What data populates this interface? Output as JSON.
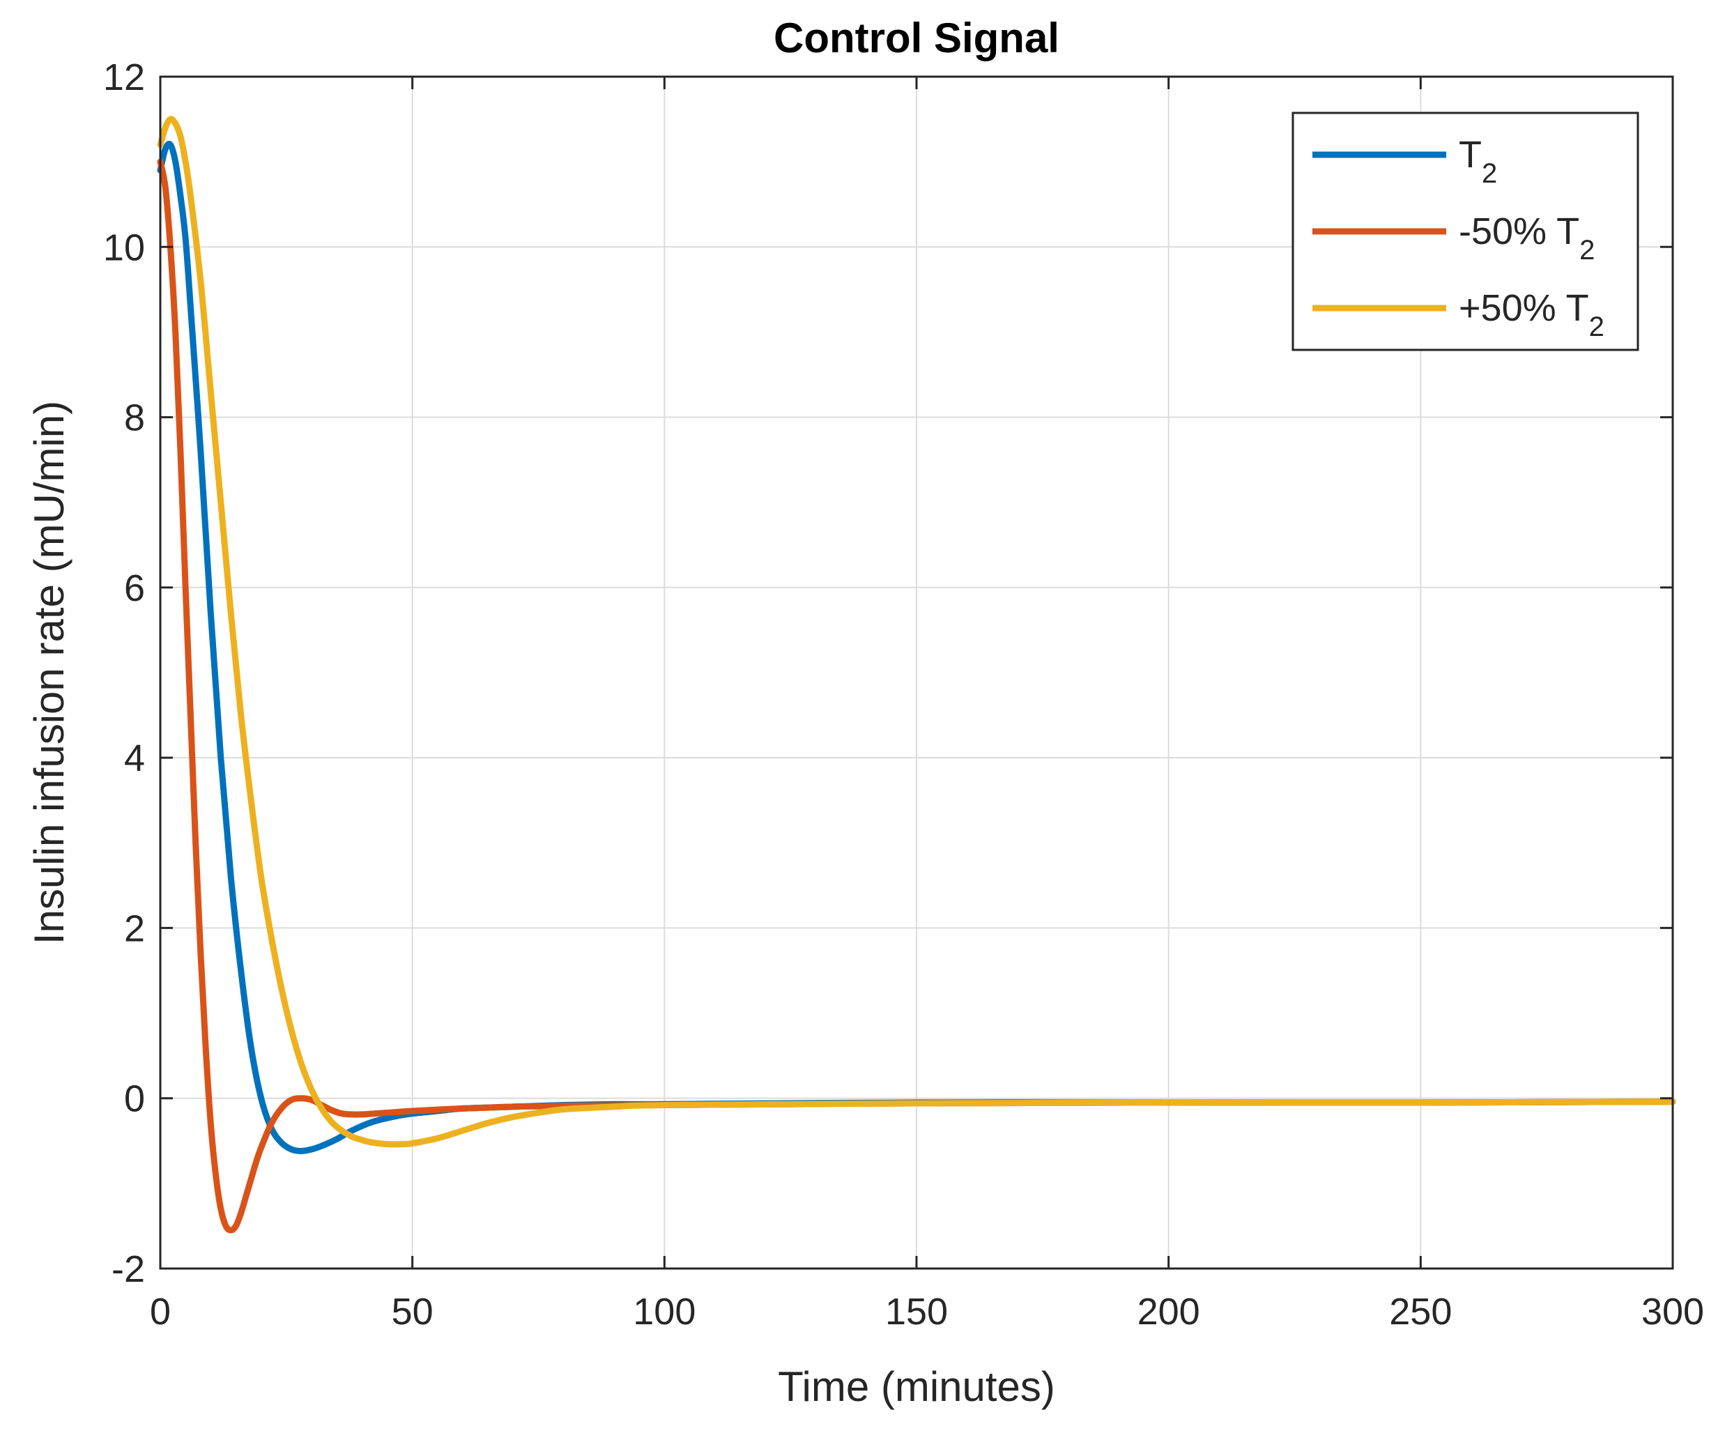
{
  "chart_data": {
    "type": "line",
    "title": "Control Signal",
    "xlabel": "Time (minutes)",
    "ylabel": "Insulin infusion rate (mU/min)",
    "xlim": [
      0,
      300
    ],
    "ylim": [
      -2,
      12
    ],
    "xticks": [
      0,
      50,
      100,
      150,
      200,
      250,
      300
    ],
    "yticks": [
      -2,
      0,
      2,
      4,
      6,
      8,
      10,
      12
    ],
    "xtick_labels": [
      "0",
      "50",
      "100",
      "150",
      "200",
      "250",
      "300"
    ],
    "ytick_labels": [
      "-2",
      "0",
      "2",
      "4",
      "6",
      "8",
      "10",
      "12"
    ],
    "grid": true,
    "legend_position": "top-right",
    "series": [
      {
        "name": "T",
        "name_subscript": "2",
        "color": "#0072BD",
        "x": [
          0,
          1,
          2,
          3,
          4,
          5,
          6,
          8,
          10,
          12,
          14,
          16,
          18,
          20,
          22,
          24,
          26,
          28,
          30,
          32,
          35,
          38,
          42,
          46,
          50,
          55,
          60,
          70,
          80,
          90,
          100,
          150,
          200,
          250,
          300
        ],
        "y": [
          10.9,
          11.15,
          11.2,
          11.0,
          10.6,
          10.1,
          9.3,
          7.6,
          5.7,
          4.0,
          2.6,
          1.5,
          0.6,
          0.0,
          -0.35,
          -0.52,
          -0.6,
          -0.62,
          -0.6,
          -0.56,
          -0.48,
          -0.38,
          -0.28,
          -0.22,
          -0.18,
          -0.15,
          -0.12,
          -0.1,
          -0.08,
          -0.07,
          -0.07,
          -0.05,
          -0.05,
          -0.05,
          -0.04
        ]
      },
      {
        "name": "-50% T",
        "name_subscript": "2",
        "color": "#D95319",
        "x": [
          0,
          1,
          2,
          3,
          4,
          5,
          6,
          7,
          8,
          9,
          10,
          11,
          12,
          13,
          14,
          15,
          16,
          17,
          18,
          19,
          20,
          22,
          24,
          26,
          28,
          30,
          32,
          34,
          36,
          38,
          40,
          45,
          50,
          60,
          70,
          80,
          100,
          150,
          200,
          250,
          300
        ],
        "y": [
          11.0,
          10.7,
          10.0,
          9.0,
          7.6,
          6.0,
          4.5,
          3.0,
          1.7,
          0.6,
          -0.3,
          -0.9,
          -1.3,
          -1.5,
          -1.55,
          -1.5,
          -1.35,
          -1.15,
          -0.95,
          -0.75,
          -0.58,
          -0.3,
          -0.12,
          -0.02,
          0.0,
          -0.02,
          -0.08,
          -0.14,
          -0.18,
          -0.19,
          -0.19,
          -0.17,
          -0.15,
          -0.12,
          -0.1,
          -0.09,
          -0.08,
          -0.06,
          -0.05,
          -0.05,
          -0.04
        ]
      },
      {
        "name": "+50% T",
        "name_subscript": "2",
        "color": "#EDB120",
        "x": [
          0,
          1,
          2,
          3,
          4,
          5,
          6,
          8,
          10,
          12,
          14,
          16,
          18,
          20,
          22,
          24,
          26,
          28,
          30,
          32,
          34,
          36,
          38,
          40,
          42,
          45,
          48,
          50,
          55,
          60,
          65,
          70,
          75,
          80,
          90,
          100,
          150,
          200,
          250,
          300
        ],
        "y": [
          11.2,
          11.4,
          11.5,
          11.45,
          11.3,
          11.0,
          10.6,
          9.6,
          8.3,
          7.0,
          5.7,
          4.5,
          3.5,
          2.6,
          1.9,
          1.3,
          0.8,
          0.4,
          0.1,
          -0.12,
          -0.28,
          -0.38,
          -0.45,
          -0.49,
          -0.52,
          -0.54,
          -0.54,
          -0.53,
          -0.47,
          -0.38,
          -0.29,
          -0.22,
          -0.17,
          -0.13,
          -0.1,
          -0.08,
          -0.06,
          -0.05,
          -0.05,
          -0.04
        ]
      }
    ]
  }
}
